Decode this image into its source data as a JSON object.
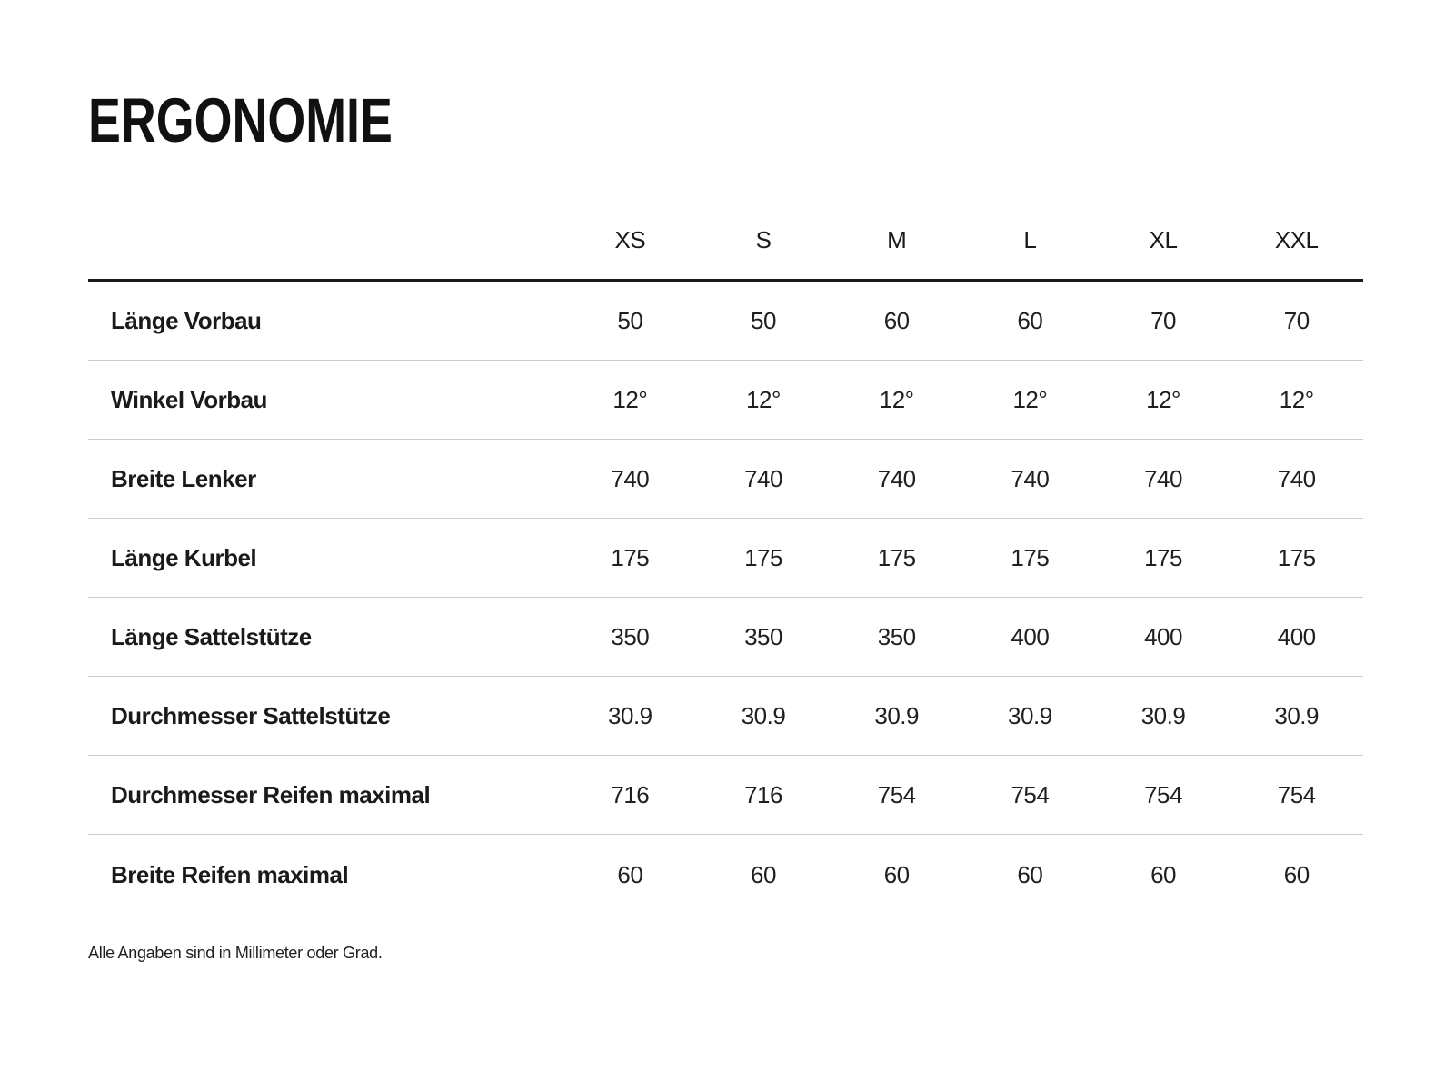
{
  "title": "ERGONOMIE",
  "table": {
    "columns": [
      "XS",
      "S",
      "M",
      "L",
      "XL",
      "XXL"
    ],
    "rows": [
      {
        "label": "Länge Vorbau",
        "values": [
          "50",
          "50",
          "60",
          "60",
          "70",
          "70"
        ]
      },
      {
        "label": "Winkel Vorbau",
        "values": [
          "12°",
          "12°",
          "12°",
          "12°",
          "12°",
          "12°"
        ]
      },
      {
        "label": "Breite Lenker",
        "values": [
          "740",
          "740",
          "740",
          "740",
          "740",
          "740"
        ]
      },
      {
        "label": "Länge Kurbel",
        "values": [
          "175",
          "175",
          "175",
          "175",
          "175",
          "175"
        ]
      },
      {
        "label": "Länge Sattelstütze",
        "values": [
          "350",
          "350",
          "350",
          "400",
          "400",
          "400"
        ]
      },
      {
        "label": "Durchmesser Sattelstütze",
        "values": [
          "30.9",
          "30.9",
          "30.9",
          "30.9",
          "30.9",
          "30.9"
        ]
      },
      {
        "label": "Durchmesser Reifen maximal",
        "values": [
          "716",
          "716",
          "754",
          "754",
          "754",
          "754"
        ]
      },
      {
        "label": "Breite Reifen maximal",
        "values": [
          "60",
          "60",
          "60",
          "60",
          "60",
          "60"
        ]
      }
    ]
  },
  "footnote": "Alle Angaben sind in Millimeter oder Grad.",
  "colors": {
    "background": "#ffffff",
    "text": "#1a1a1a",
    "heavy_rule": "#1a1a1a",
    "row_rule": "#cccccc"
  }
}
